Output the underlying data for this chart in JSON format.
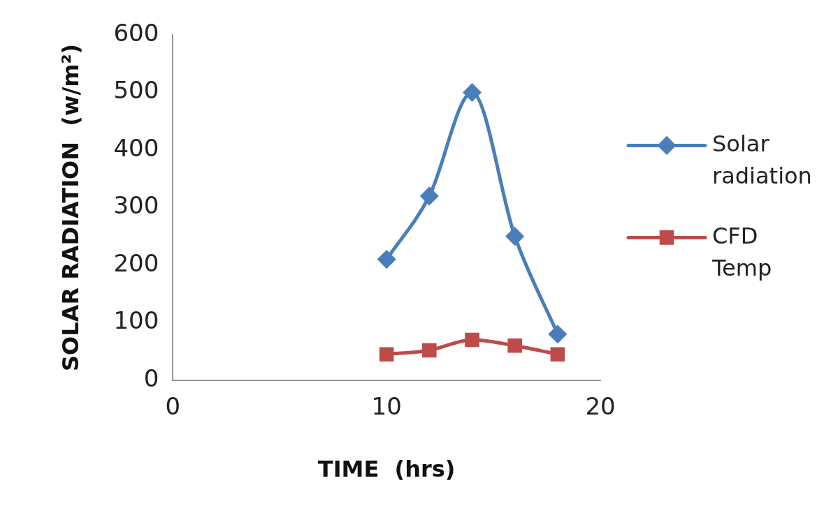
{
  "chart_data": {
    "type": "line",
    "xlabel": "TIME  (hrs)",
    "ylabel": "SOLAR RADIATION  (w/m²)",
    "x": [
      10,
      12,
      14,
      16,
      18
    ],
    "series": [
      {
        "name": "Solar radiation",
        "color": "#4a7ebb",
        "values": [
          210,
          320,
          500,
          250,
          80
        ],
        "marker": "diamond"
      },
      {
        "name": "CFD Temp",
        "color": "#be4b48",
        "values": [
          45,
          52,
          70,
          60,
          45
        ],
        "marker": "square"
      }
    ],
    "xlim": [
      0,
      20
    ],
    "xticks": [
      0,
      10,
      20
    ],
    "ylim": [
      0,
      600
    ],
    "yticks": [
      0,
      100,
      200,
      300,
      400,
      500,
      600
    ],
    "grid": false,
    "legend": "right",
    "line_style": "solid"
  }
}
